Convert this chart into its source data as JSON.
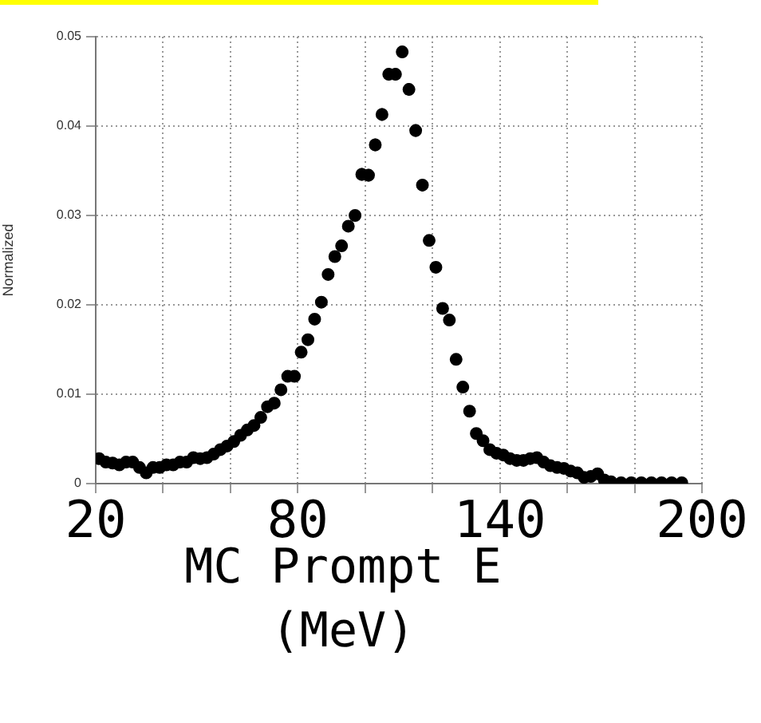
{
  "chart_data": {
    "type": "scatter",
    "ylabel": "Normalized",
    "xlabel": "MC Prompt E (MeV)",
    "xlim": [
      20,
      200
    ],
    "xticks": [
      20,
      {
        "value": 40,
        "label": null
      },
      {
        "value": 60,
        "label": null
      },
      80,
      {
        "value": 100,
        "label": null
      },
      {
        "value": 120,
        "label": null
      },
      140,
      {
        "value": 160,
        "label": null
      },
      {
        "value": 180,
        "label": null
      },
      200
    ],
    "ylim": [
      0,
      0.05
    ],
    "yticks": [
      0,
      0.01,
      0.02,
      0.03,
      0.04,
      0.05
    ],
    "grid": true,
    "legend": false,
    "marker": "circle",
    "series": [
      {
        "color": "#000000",
        "x": [
          21,
          23,
          25,
          27,
          29,
          31,
          33,
          35,
          37,
          39,
          41,
          43,
          45,
          47,
          49,
          51,
          53,
          55,
          57,
          59,
          61,
          63,
          65,
          67,
          69,
          71,
          73,
          75,
          77,
          79,
          81,
          83,
          85,
          87,
          89,
          91,
          93,
          95,
          97,
          99,
          101,
          103,
          105,
          107,
          109,
          111,
          113,
          115,
          117,
          119,
          121,
          123,
          125,
          127,
          129,
          131,
          133,
          135,
          137,
          139,
          141,
          143,
          145,
          147,
          149,
          151,
          153,
          155,
          157,
          159,
          161,
          163,
          165,
          167,
          169,
          171,
          173,
          176,
          179,
          182,
          185,
          188,
          191,
          194
        ],
        "values": [
          0.0028,
          0.0024,
          0.0023,
          0.0021,
          0.0024,
          0.0024,
          0.0018,
          0.0012,
          0.0018,
          0.0018,
          0.0021,
          0.0021,
          0.0024,
          0.0024,
          0.0029,
          0.0028,
          0.0029,
          0.0033,
          0.0038,
          0.0042,
          0.0047,
          0.0054,
          0.006,
          0.0065,
          0.0074,
          0.0086,
          0.009,
          0.0105,
          0.012,
          0.012,
          0.0147,
          0.0161,
          0.0184,
          0.0203,
          0.0234,
          0.0254,
          0.0266,
          0.0288,
          0.03,
          0.0346,
          0.0345,
          0.0379,
          0.0413,
          0.0458,
          0.0458,
          0.0483,
          0.0441,
          0.0395,
          0.0334,
          0.0272,
          0.0242,
          0.0196,
          0.0183,
          0.0139,
          0.0108,
          0.0081,
          0.0056,
          0.0048,
          0.0038,
          0.0034,
          0.0032,
          0.0028,
          0.0026,
          0.0026,
          0.0028,
          0.0029,
          0.0024,
          0.002,
          0.0018,
          0.0017,
          0.0014,
          0.0012,
          0.0007,
          0.0008,
          0.0011,
          0.0004,
          0.0002,
          0.0001,
          0.0001,
          0.0001,
          0.0001,
          0.0001,
          0.0001,
          0.0001
        ],
        "errors": [
          null,
          null,
          null,
          null,
          null,
          null,
          null,
          null,
          null,
          null,
          null,
          null,
          null,
          null,
          null,
          null,
          null,
          null,
          null,
          null,
          null,
          null,
          null,
          null,
          null,
          null,
          null,
          null,
          null,
          null,
          null,
          null,
          null,
          null,
          null,
          null,
          null,
          null,
          null,
          0.0007,
          0.0007,
          0.0007,
          0.0007,
          0.0007,
          0.0007,
          0.0007,
          0.0007,
          0.0007,
          0.0007,
          null,
          null,
          null,
          null,
          null,
          null,
          null,
          null,
          null,
          null,
          null,
          null,
          null,
          null,
          null,
          null,
          null,
          null,
          null,
          null,
          null,
          null,
          null,
          null,
          null,
          null,
          null,
          null,
          null,
          null,
          null,
          null,
          null,
          null,
          null
        ]
      }
    ]
  }
}
